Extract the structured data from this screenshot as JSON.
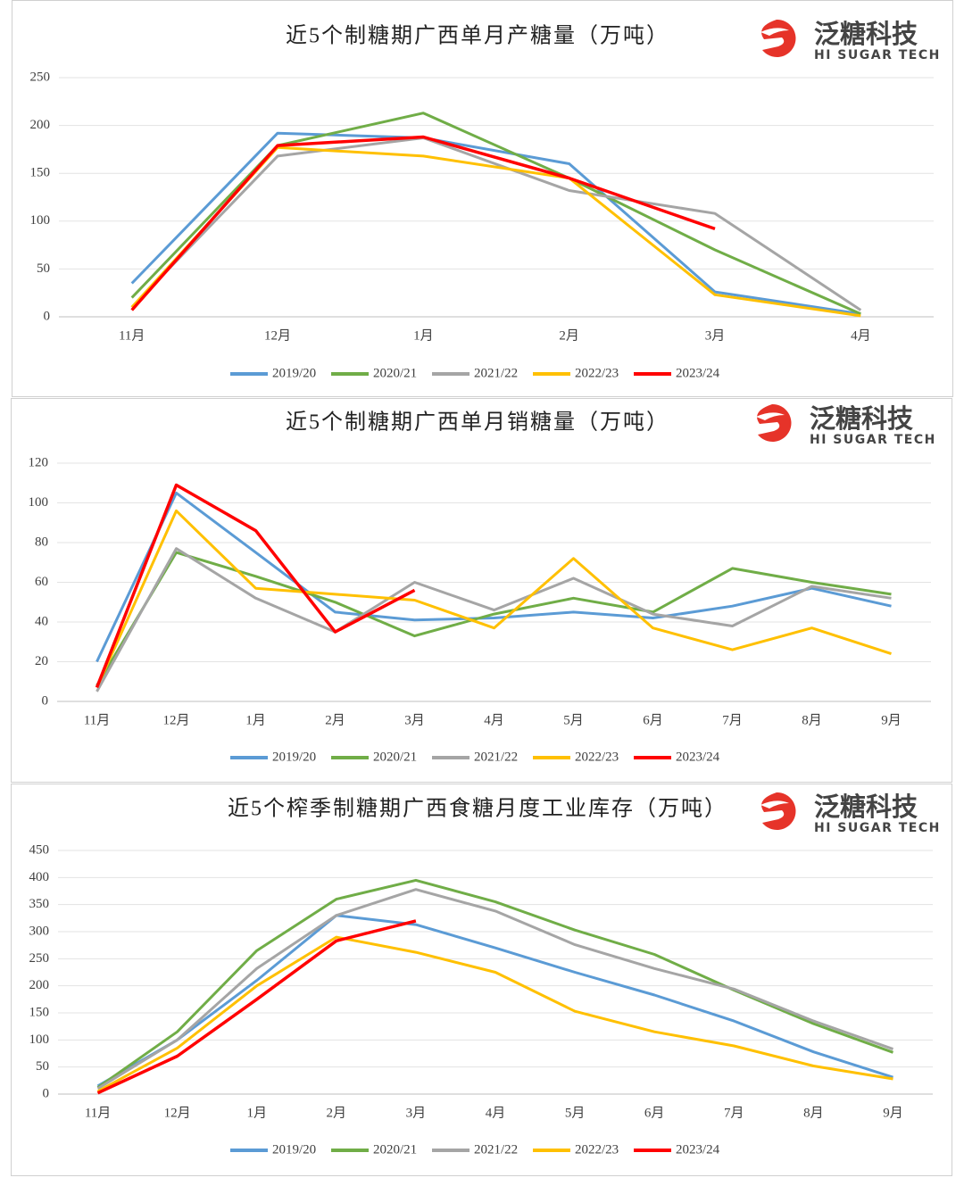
{
  "logo": {
    "name": "泛糖科技",
    "tagline": "HI SUGAR TECH"
  },
  "chart_data": [
    {
      "type": "line",
      "title": "近5个制糖期广西单月产糖量（万吨）",
      "categories": [
        "11月",
        "12月",
        "1月",
        "2月",
        "3月",
        "4月"
      ],
      "ylim": [
        0,
        250
      ],
      "yticks": [
        0,
        50,
        100,
        150,
        200,
        250
      ],
      "grid": true,
      "legend": "bottom",
      "series": [
        {
          "name": "2019/20",
          "color": "#5b9bd5",
          "values": [
            35,
            192,
            187,
            160,
            26,
            3
          ]
        },
        {
          "name": "2020/21",
          "color": "#70ad47",
          "values": [
            20,
            179,
            213,
            145,
            70,
            3
          ]
        },
        {
          "name": "2021/22",
          "color": "#a5a5a5",
          "values": [
            10,
            168,
            187,
            132,
            108,
            7
          ]
        },
        {
          "name": "2022/23",
          "color": "#ffc000",
          "values": [
            10,
            177,
            168,
            145,
            23,
            1
          ]
        },
        {
          "name": "2023/24",
          "color": "#ff0000",
          "values": [
            7,
            179,
            188,
            145,
            92,
            null
          ]
        }
      ]
    },
    {
      "type": "line",
      "title": "近5个制糖期广西单月销糖量（万吨）",
      "categories": [
        "11月",
        "12月",
        "1月",
        "2月",
        "3月",
        "4月",
        "5月",
        "6月",
        "7月",
        "8月",
        "9月"
      ],
      "ylim": [
        0,
        120
      ],
      "yticks": [
        0,
        20,
        40,
        60,
        80,
        100,
        120
      ],
      "grid": true,
      "legend": "bottom",
      "series": [
        {
          "name": "2019/20",
          "color": "#5b9bd5",
          "values": [
            20,
            105,
            75,
            45,
            41,
            42,
            45,
            42,
            48,
            57,
            48
          ]
        },
        {
          "name": "2020/21",
          "color": "#70ad47",
          "values": [
            8,
            75,
            63,
            50,
            33,
            44,
            52,
            45,
            67,
            60,
            54
          ]
        },
        {
          "name": "2021/22",
          "color": "#a5a5a5",
          "values": [
            5,
            77,
            52,
            35,
            60,
            46,
            62,
            44,
            38,
            58,
            52
          ]
        },
        {
          "name": "2022/23",
          "color": "#ffc000",
          "values": [
            7,
            96,
            57,
            54,
            51,
            37,
            72,
            37,
            26,
            37,
            24
          ]
        },
        {
          "name": "2023/24",
          "color": "#ff0000",
          "values": [
            7,
            109,
            86,
            35,
            56,
            null,
            null,
            null,
            null,
            null,
            null
          ]
        }
      ]
    },
    {
      "type": "line",
      "title": "近5个榨季制糖期广西食糖月度工业库存（万吨）",
      "categories": [
        "11月",
        "12月",
        "1月",
        "2月",
        "3月",
        "4月",
        "5月",
        "6月",
        "7月",
        "8月",
        "9月"
      ],
      "ylim": [
        0,
        450
      ],
      "yticks": [
        0,
        50,
        100,
        150,
        200,
        250,
        300,
        350,
        400,
        450
      ],
      "grid": true,
      "legend": "bottom",
      "series": [
        {
          "name": "2019/20",
          "color": "#5b9bd5",
          "values": [
            15,
            100,
            210,
            330,
            313,
            270,
            225,
            183,
            135,
            78,
            31
          ]
        },
        {
          "name": "2020/21",
          "color": "#70ad47",
          "values": [
            12,
            115,
            265,
            360,
            395,
            355,
            303,
            258,
            192,
            130,
            77
          ]
        },
        {
          "name": "2021/22",
          "color": "#a5a5a5",
          "values": [
            10,
            100,
            232,
            330,
            378,
            338,
            276,
            232,
            194,
            135,
            83
          ]
        },
        {
          "name": "2022/23",
          "color": "#ffc000",
          "values": [
            5,
            85,
            200,
            290,
            262,
            225,
            153,
            115,
            89,
            52,
            28
          ]
        },
        {
          "name": "2023/24",
          "color": "#ff0000",
          "values": [
            2,
            70,
            175,
            283,
            320,
            null,
            null,
            null,
            null,
            null,
            null
          ]
        }
      ]
    }
  ]
}
